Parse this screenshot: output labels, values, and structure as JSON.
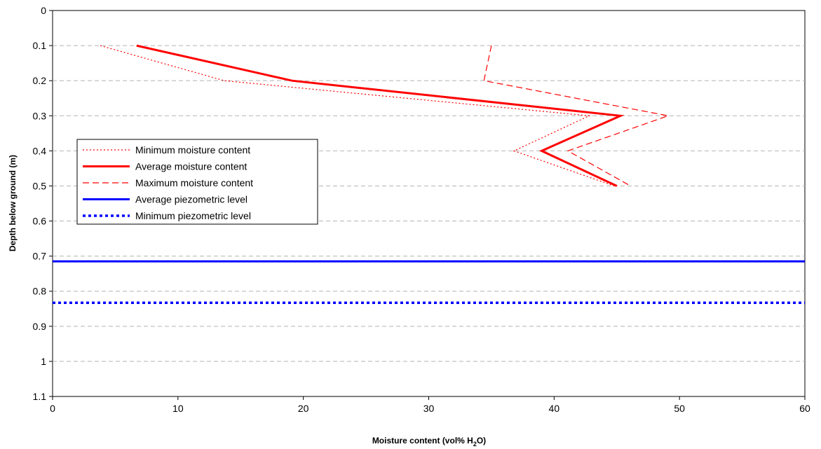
{
  "chart_data": {
    "type": "line",
    "xlabel": "Moisture content (vol% H2O)",
    "xlabel_parts": {
      "main": "Moisture content (vol% H",
      "sub": "2",
      "tail": "O)"
    },
    "ylabel": "Depth below ground (m)",
    "xlim": [
      0,
      60
    ],
    "ylim": [
      0,
      1.1
    ],
    "y_inverted": true,
    "x_ticks": [
      0,
      10,
      20,
      30,
      40,
      50,
      60
    ],
    "y_ticks": [
      0,
      0.1,
      0.2,
      0.3,
      0.4,
      0.5,
      0.6,
      0.7,
      0.8,
      0.9,
      1,
      1.1
    ],
    "grid": "horizontal dashed",
    "legend_position": "left",
    "series": [
      {
        "name": "Minimum moisture content",
        "color": "#ff0000",
        "style": "dotted",
        "points": [
          [
            3.8,
            0.1
          ],
          [
            13.7,
            0.2
          ],
          [
            42.8,
            0.3
          ],
          [
            36.8,
            0.4
          ],
          [
            44.8,
            0.5
          ]
        ]
      },
      {
        "name": "Average moisture content",
        "color": "#ff0000",
        "style": "solid",
        "points": [
          [
            6.7,
            0.1
          ],
          [
            19.1,
            0.2
          ],
          [
            45.3,
            0.3
          ],
          [
            39.0,
            0.4
          ],
          [
            45.0,
            0.5
          ]
        ]
      },
      {
        "name": "Maximum moisture content",
        "color": "#ff0000",
        "style": "dashed",
        "points": [
          [
            35.0,
            0.1
          ],
          [
            34.4,
            0.2
          ],
          [
            49.1,
            0.3
          ],
          [
            41.1,
            0.4
          ],
          [
            46.1,
            0.5
          ]
        ]
      },
      {
        "name": "Average piezometric level",
        "color": "#0000ff",
        "style": "solid",
        "points": [
          [
            0,
            0.715
          ],
          [
            60,
            0.715
          ]
        ]
      },
      {
        "name": "Minimum piezometric level",
        "color": "#0000ff",
        "style": "dotted-thick",
        "points": [
          [
            0,
            0.833
          ],
          [
            60,
            0.833
          ]
        ]
      }
    ]
  }
}
